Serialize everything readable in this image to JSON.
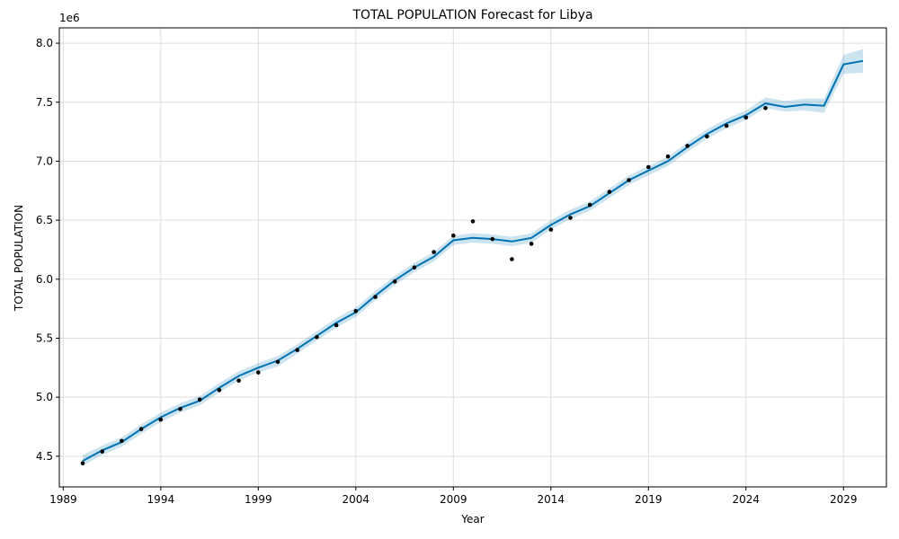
{
  "chart_data": {
    "type": "line",
    "title": "TOTAL POPULATION Forecast for Libya",
    "xlabel": "Year",
    "ylabel": "TOTAL POPULATION",
    "y_scale_label": "1e6",
    "xlim": [
      1988.8,
      2031.2
    ],
    "ylim": [
      4.24,
      8.13
    ],
    "x_ticks": [
      1989,
      1994,
      1999,
      2004,
      2009,
      2014,
      2019,
      2024,
      2029
    ],
    "y_ticks": [
      4.5,
      5.0,
      5.5,
      6.0,
      6.5,
      7.0,
      7.5,
      8.0
    ],
    "y_tick_labels": [
      "4.5",
      "5.0",
      "5.5",
      "6.0",
      "6.5",
      "7.0",
      "7.5",
      "8.0"
    ],
    "grid": true,
    "colors": {
      "forecast_line": "#0072B2",
      "interval_fill": "#0072B2",
      "observed": "#000000",
      "grid": "#dddddd"
    },
    "observed": {
      "x": [
        1990,
        1991,
        1992,
        1993,
        1994,
        1995,
        1996,
        1997,
        1998,
        1999,
        2000,
        2001,
        2002,
        2003,
        2004,
        2005,
        2006,
        2007,
        2008,
        2009,
        2010,
        2011,
        2012,
        2013,
        2014,
        2015,
        2016,
        2017,
        2018,
        2019,
        2020,
        2021,
        2022,
        2023,
        2024,
        2025
      ],
      "y": [
        4.44,
        4.54,
        4.63,
        4.73,
        4.81,
        4.9,
        4.98,
        5.06,
        5.14,
        5.21,
        5.3,
        5.4,
        5.51,
        5.61,
        5.73,
        5.85,
        5.98,
        6.1,
        6.23,
        6.37,
        6.49,
        6.34,
        6.17,
        6.3,
        6.42,
        6.52,
        6.63,
        6.74,
        6.84,
        6.95,
        7.04,
        7.13,
        7.21,
        7.3,
        7.37,
        7.45
      ]
    },
    "forecast": {
      "x": [
        1990,
        1991,
        1992,
        1993,
        1994,
        1995,
        1996,
        1997,
        1998,
        1999,
        2000,
        2001,
        2002,
        2003,
        2004,
        2005,
        2006,
        2007,
        2008,
        2009,
        2010,
        2011,
        2012,
        2013,
        2014,
        2015,
        2016,
        2017,
        2018,
        2019,
        2020,
        2021,
        2022,
        2023,
        2024,
        2025,
        2026,
        2027,
        2028,
        2029,
        2030
      ],
      "yhat": [
        4.46,
        4.55,
        4.62,
        4.73,
        4.83,
        4.91,
        4.97,
        5.08,
        5.18,
        5.25,
        5.31,
        5.41,
        5.52,
        5.63,
        5.72,
        5.86,
        5.99,
        6.1,
        6.19,
        6.33,
        6.35,
        6.34,
        6.32,
        6.35,
        6.46,
        6.55,
        6.62,
        6.73,
        6.84,
        6.92,
        7.0,
        7.12,
        7.23,
        7.32,
        7.39,
        7.49,
        7.46,
        7.48,
        7.47,
        7.82,
        7.85
      ],
      "lower": [
        4.42,
        4.51,
        4.58,
        4.69,
        4.79,
        4.87,
        4.93,
        5.04,
        5.14,
        5.21,
        5.26,
        5.37,
        5.48,
        5.59,
        5.68,
        5.82,
        5.95,
        6.06,
        6.15,
        6.29,
        6.31,
        6.3,
        6.28,
        6.31,
        6.42,
        6.51,
        6.58,
        6.69,
        6.8,
        6.88,
        6.96,
        7.08,
        7.19,
        7.28,
        7.35,
        7.45,
        7.42,
        7.43,
        7.41,
        7.74,
        7.75
      ],
      "upper": [
        4.51,
        4.59,
        4.66,
        4.77,
        4.87,
        4.95,
        5.01,
        5.12,
        5.22,
        5.29,
        5.35,
        5.45,
        5.56,
        5.67,
        5.76,
        5.9,
        6.03,
        6.14,
        6.23,
        6.37,
        6.39,
        6.38,
        6.36,
        6.39,
        6.5,
        6.59,
        6.66,
        6.77,
        6.88,
        6.96,
        7.04,
        7.16,
        7.27,
        7.36,
        7.43,
        7.54,
        7.51,
        7.53,
        7.53,
        7.9,
        7.95
      ]
    }
  }
}
